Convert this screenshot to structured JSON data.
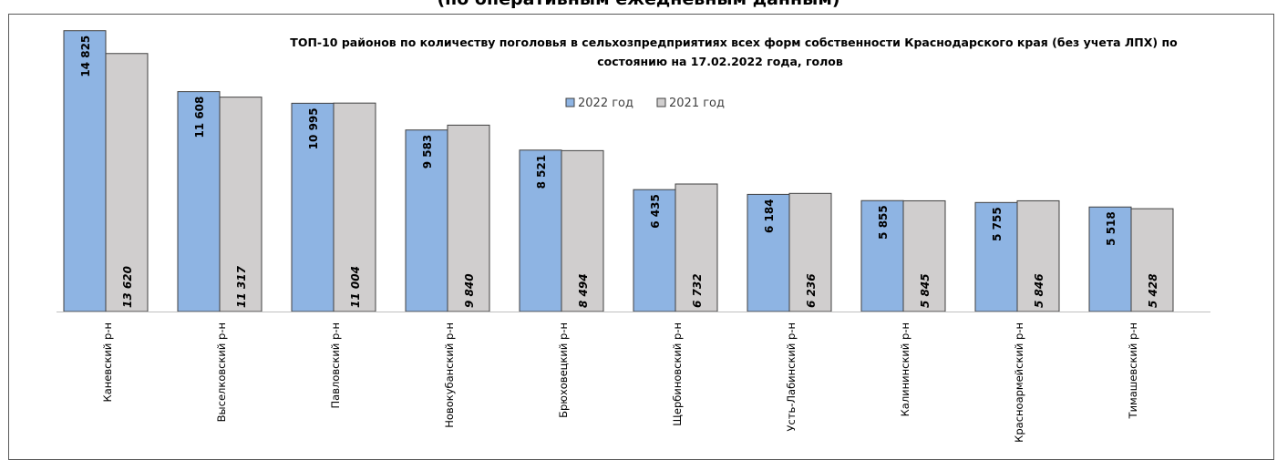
{
  "header_cut_text": "(по оперативным ежедневным данным)",
  "chart_data": {
    "type": "bar",
    "title_lines": [
      "ТОП-10 районов по количеству поголовья в сельхозпредприятиях всех форм собственности Краснодарского края (без учета ЛПХ) по",
      "состоянию на 17.02.2022 года, голов"
    ],
    "categories": [
      "Каневский р-н",
      "Выселковский р-н",
      "Павловский р-н",
      "Новокубанский р-н",
      "Брюховецкий р-н",
      "Щербиновский р-н",
      "Усть-Лабинский р-н",
      "Калининский р-н",
      "Красноармейский р-н",
      "Тимашевский р-н"
    ],
    "series": [
      {
        "name": "2022 год",
        "color": "#8eb4e3",
        "values": [
          14825,
          11608,
          10995,
          9583,
          8521,
          6435,
          6184,
          5855,
          5755,
          5518
        ],
        "labels": [
          "14 825",
          "11 608",
          "10 995",
          "9 583",
          "8 521",
          "6 435",
          "6 184",
          "5 855",
          "5 755",
          "5 518"
        ]
      },
      {
        "name": "2021 год",
        "color": "#d0cece",
        "values": [
          13620,
          11317,
          11004,
          9840,
          8494,
          6732,
          6236,
          5845,
          5846,
          5428
        ],
        "labels": [
          "13 620",
          "11 317",
          "11 004",
          "9 840",
          "8 494",
          "6 732",
          "6 236",
          "5 845",
          "5 846",
          "5 428"
        ]
      }
    ],
    "ylim": [
      0,
      15000
    ],
    "grid": false,
    "legend_position": "top-center",
    "border_color": "#404040",
    "axis_color": "#bfbfbf"
  }
}
